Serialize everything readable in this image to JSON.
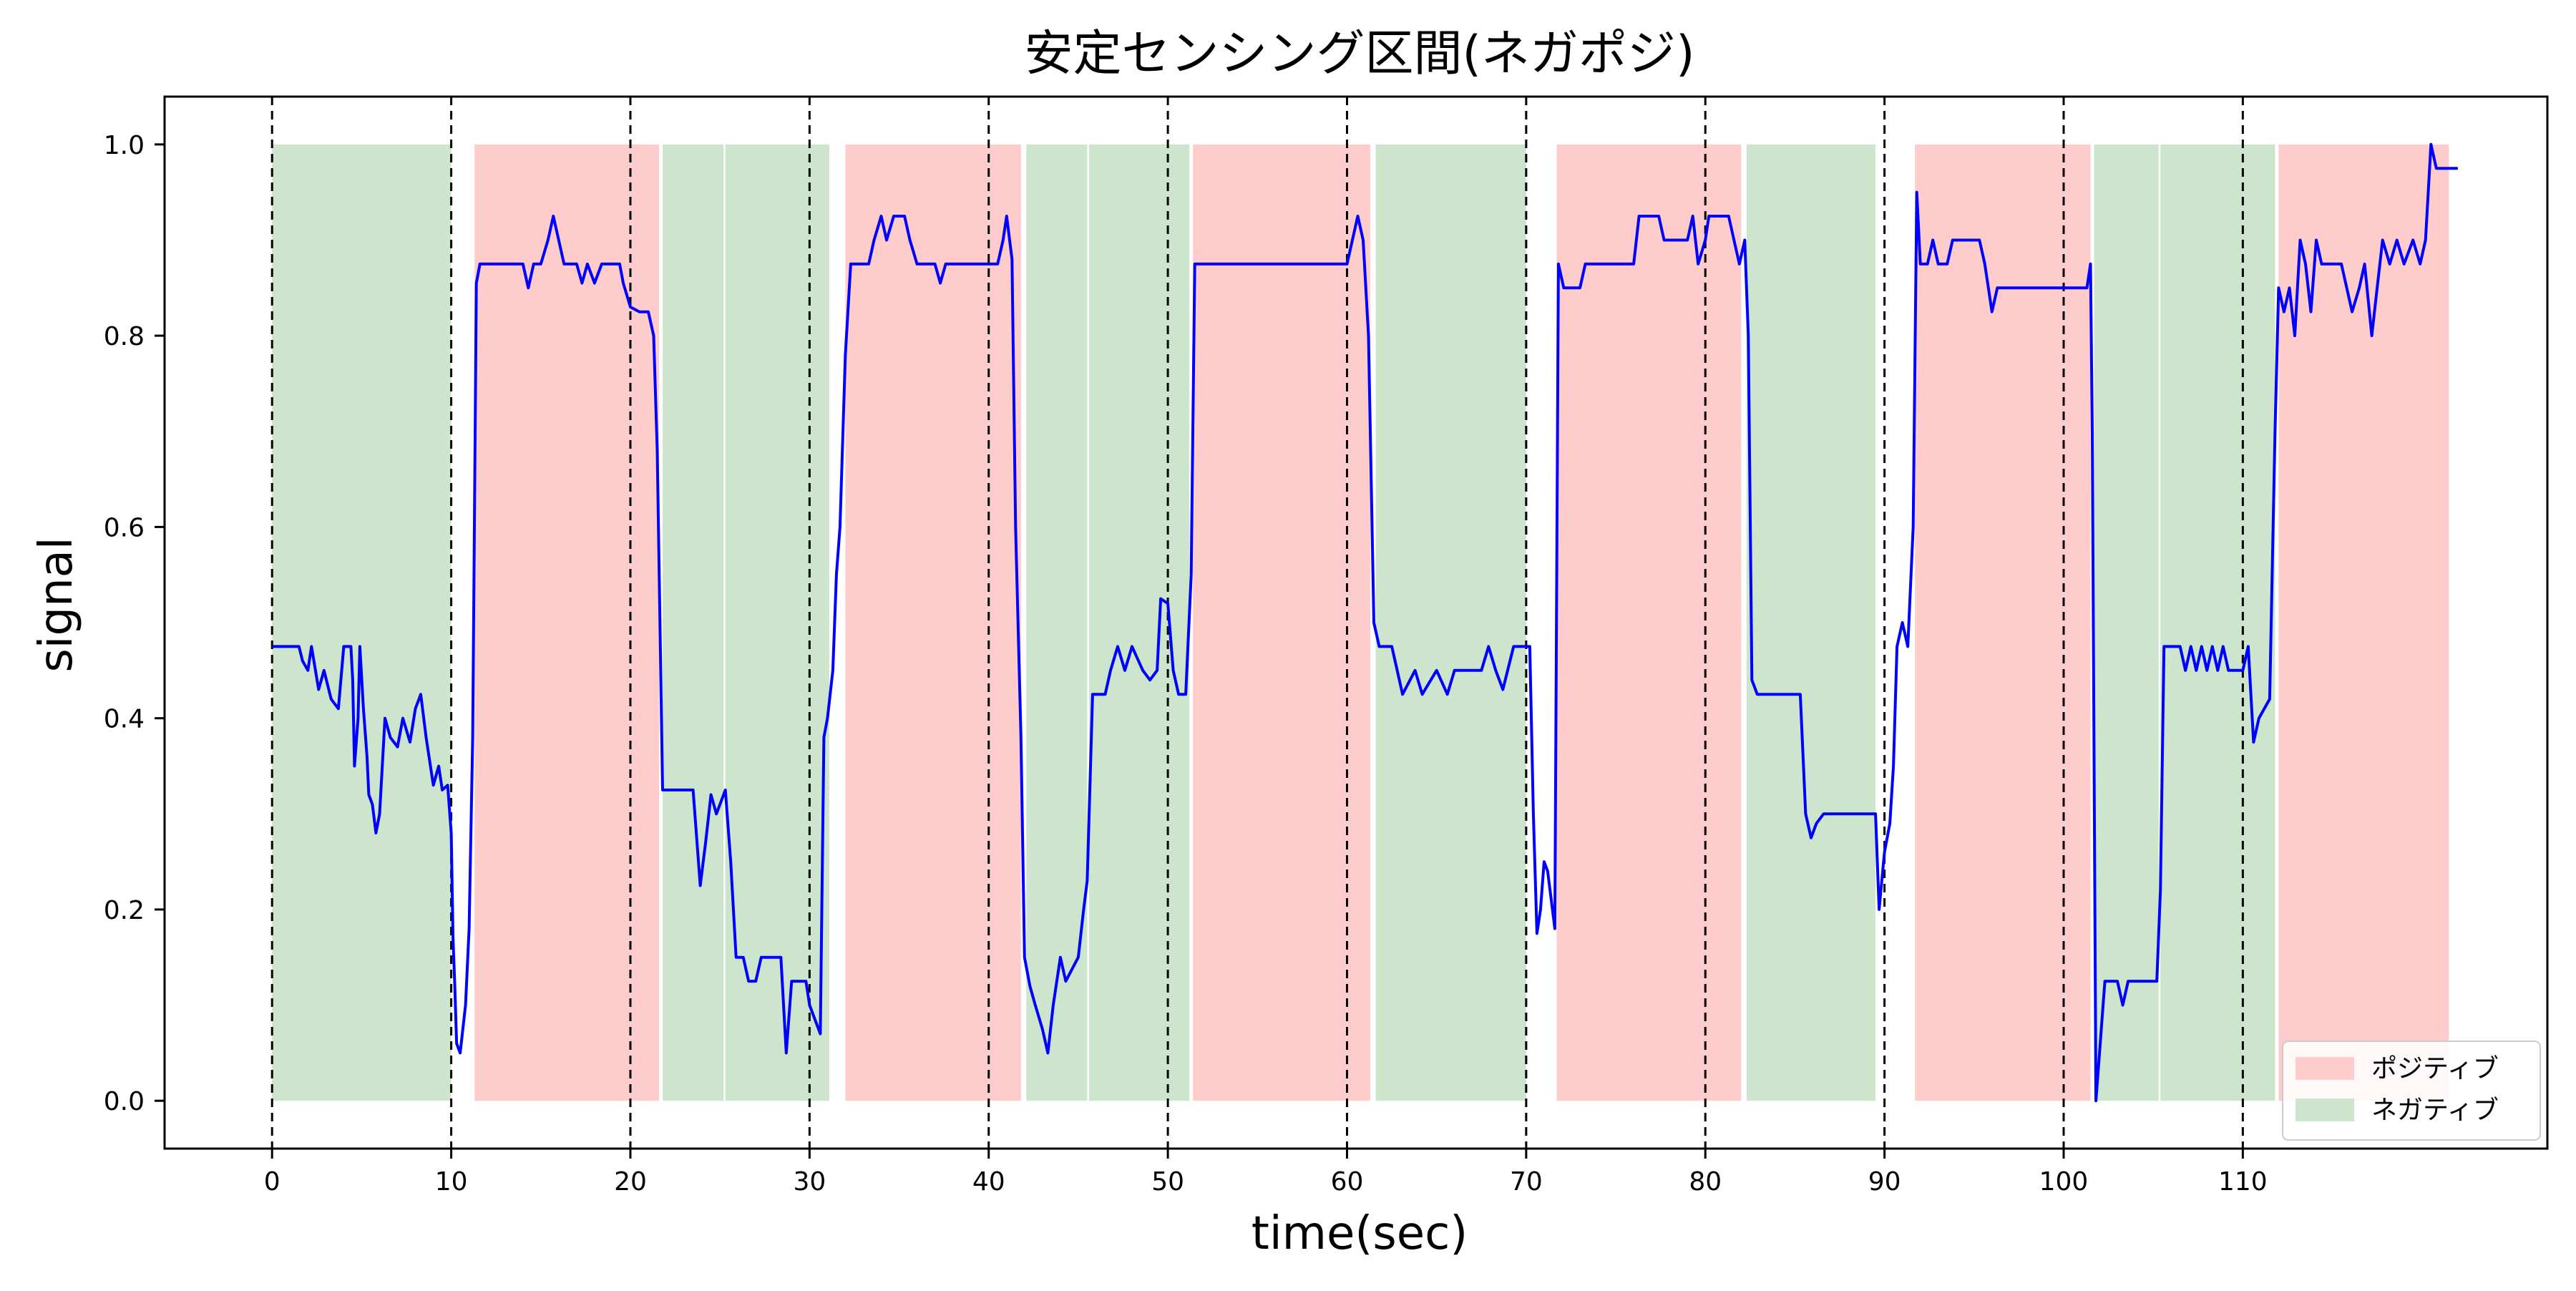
{
  "chart_data": {
    "type": "line",
    "title": "安定センシング区間(ネガポジ)",
    "xlabel": "time(sec)",
    "ylabel": "signal",
    "xlim": [
      -6,
      127
    ],
    "ylim": [
      -0.05,
      1.05
    ],
    "xticks": [
      0,
      10,
      20,
      30,
      40,
      50,
      60,
      70,
      80,
      90,
      100,
      110
    ],
    "yticks": [
      0.0,
      0.2,
      0.4,
      0.6,
      0.8,
      1.0
    ],
    "xtick_labels": [
      "0",
      "10",
      "20",
      "30",
      "40",
      "50",
      "60",
      "70",
      "80",
      "90",
      "100",
      "110"
    ],
    "ytick_labels": [
      "0.0",
      "0.2",
      "0.4",
      "0.6",
      "0.8",
      "1.0"
    ],
    "grid": false,
    "vlines": [
      0,
      10,
      20,
      30,
      40,
      50,
      60,
      70,
      80,
      90,
      100,
      110
    ],
    "legend": {
      "position": "bottom-right",
      "entries": [
        {
          "label": "ポジティブ",
          "color": "#ffcccc"
        },
        {
          "label": "ネガティブ",
          "color": "#cde5cd"
        }
      ]
    },
    "regions": [
      {
        "kind": "negative",
        "x0": 0.0,
        "x1": 10.0
      },
      {
        "kind": "positive",
        "x0": 11.3,
        "x1": 21.6
      },
      {
        "kind": "negative",
        "x0": 21.8,
        "x1": 25.2
      },
      {
        "kind": "negative",
        "x0": 25.3,
        "x1": 31.1
      },
      {
        "kind": "positive",
        "x0": 32.0,
        "x1": 41.8
      },
      {
        "kind": "negative",
        "x0": 42.1,
        "x1": 45.5
      },
      {
        "kind": "negative",
        "x0": 45.6,
        "x1": 51.2
      },
      {
        "kind": "positive",
        "x0": 51.4,
        "x1": 61.3
      },
      {
        "kind": "negative",
        "x0": 61.6,
        "x1": 70.0
      },
      {
        "kind": "positive",
        "x0": 71.7,
        "x1": 82.0
      },
      {
        "kind": "negative",
        "x0": 82.3,
        "x1": 89.5
      },
      {
        "kind": "positive",
        "x0": 91.7,
        "x1": 101.5
      },
      {
        "kind": "negative",
        "x0": 101.7,
        "x1": 105.3
      },
      {
        "kind": "negative",
        "x0": 105.4,
        "x1": 111.8
      },
      {
        "kind": "positive",
        "x0": 112.0,
        "x1": 121.5
      }
    ],
    "series": [
      {
        "color": "#0000ff",
        "points": [
          [
            0,
            0.475
          ],
          [
            1.5,
            0.475
          ],
          [
            1.7,
            0.46
          ],
          [
            2.0,
            0.45
          ],
          [
            2.2,
            0.475
          ],
          [
            2.6,
            0.43
          ],
          [
            2.9,
            0.45
          ],
          [
            3.3,
            0.42
          ],
          [
            3.7,
            0.41
          ],
          [
            4.0,
            0.475
          ],
          [
            4.4,
            0.475
          ],
          [
            4.5,
            0.44
          ],
          [
            4.6,
            0.35
          ],
          [
            4.8,
            0.4
          ],
          [
            4.9,
            0.475
          ],
          [
            5.1,
            0.41
          ],
          [
            5.3,
            0.36
          ],
          [
            5.4,
            0.32
          ],
          [
            5.6,
            0.31
          ],
          [
            5.8,
            0.28
          ],
          [
            6.0,
            0.3
          ],
          [
            6.3,
            0.4
          ],
          [
            6.6,
            0.38
          ],
          [
            7.0,
            0.37
          ],
          [
            7.3,
            0.4
          ],
          [
            7.7,
            0.375
          ],
          [
            8.0,
            0.41
          ],
          [
            8.3,
            0.425
          ],
          [
            8.6,
            0.38
          ],
          [
            9.0,
            0.33
          ],
          [
            9.3,
            0.35
          ],
          [
            9.5,
            0.325
          ],
          [
            9.8,
            0.33
          ],
          [
            10.0,
            0.28
          ],
          [
            10.1,
            0.17
          ],
          [
            10.2,
            0.12
          ],
          [
            10.3,
            0.06
          ],
          [
            10.5,
            0.05
          ],
          [
            10.8,
            0.1
          ],
          [
            11.0,
            0.18
          ],
          [
            11.2,
            0.38
          ],
          [
            11.4,
            0.855
          ],
          [
            11.6,
            0.875
          ],
          [
            14.0,
            0.875
          ],
          [
            14.3,
            0.85
          ],
          [
            14.6,
            0.875
          ],
          [
            15.0,
            0.875
          ],
          [
            15.4,
            0.9
          ],
          [
            15.7,
            0.925
          ],
          [
            16.0,
            0.9
          ],
          [
            16.3,
            0.875
          ],
          [
            17.0,
            0.875
          ],
          [
            17.3,
            0.855
          ],
          [
            17.6,
            0.875
          ],
          [
            18.0,
            0.855
          ],
          [
            18.4,
            0.875
          ],
          [
            19.4,
            0.875
          ],
          [
            19.6,
            0.855
          ],
          [
            20.0,
            0.83
          ],
          [
            20.5,
            0.825
          ],
          [
            21.0,
            0.825
          ],
          [
            21.3,
            0.8
          ],
          [
            21.5,
            0.68
          ],
          [
            21.8,
            0.325
          ],
          [
            23.5,
            0.325
          ],
          [
            23.9,
            0.225
          ],
          [
            24.2,
            0.27
          ],
          [
            24.5,
            0.32
          ],
          [
            24.8,
            0.3
          ],
          [
            25.3,
            0.325
          ],
          [
            25.6,
            0.25
          ],
          [
            25.9,
            0.15
          ],
          [
            26.3,
            0.15
          ],
          [
            26.6,
            0.125
          ],
          [
            27.0,
            0.125
          ],
          [
            27.3,
            0.15
          ],
          [
            28.4,
            0.15
          ],
          [
            28.7,
            0.05
          ],
          [
            29.0,
            0.125
          ],
          [
            29.8,
            0.125
          ],
          [
            30.0,
            0.1
          ],
          [
            30.4,
            0.08
          ],
          [
            30.6,
            0.07
          ],
          [
            30.8,
            0.38
          ],
          [
            31.0,
            0.4
          ],
          [
            31.3,
            0.45
          ],
          [
            31.5,
            0.55
          ],
          [
            31.7,
            0.6
          ],
          [
            32.0,
            0.78
          ],
          [
            32.3,
            0.875
          ],
          [
            33.3,
            0.875
          ],
          [
            33.6,
            0.9
          ],
          [
            34.0,
            0.925
          ],
          [
            34.3,
            0.9
          ],
          [
            34.7,
            0.925
          ],
          [
            35.3,
            0.925
          ],
          [
            35.6,
            0.9
          ],
          [
            36.0,
            0.875
          ],
          [
            37.0,
            0.875
          ],
          [
            37.3,
            0.855
          ],
          [
            37.6,
            0.875
          ],
          [
            40.5,
            0.875
          ],
          [
            40.8,
            0.9
          ],
          [
            41.0,
            0.925
          ],
          [
            41.3,
            0.88
          ],
          [
            41.5,
            0.6
          ],
          [
            41.8,
            0.38
          ],
          [
            42.0,
            0.15
          ],
          [
            42.3,
            0.12
          ],
          [
            42.6,
            0.1
          ],
          [
            43.0,
            0.075
          ],
          [
            43.3,
            0.05
          ],
          [
            43.6,
            0.1
          ],
          [
            44.0,
            0.15
          ],
          [
            44.3,
            0.125
          ],
          [
            45.0,
            0.15
          ],
          [
            45.3,
            0.2
          ],
          [
            45.5,
            0.23
          ],
          [
            45.8,
            0.425
          ],
          [
            46.5,
            0.425
          ],
          [
            46.8,
            0.45
          ],
          [
            47.2,
            0.475
          ],
          [
            47.6,
            0.45
          ],
          [
            48.0,
            0.475
          ],
          [
            48.6,
            0.45
          ],
          [
            49.0,
            0.44
          ],
          [
            49.4,
            0.45
          ],
          [
            49.6,
            0.525
          ],
          [
            50.0,
            0.52
          ],
          [
            50.3,
            0.45
          ],
          [
            50.6,
            0.425
          ],
          [
            51.0,
            0.425
          ],
          [
            51.3,
            0.55
          ],
          [
            51.5,
            0.875
          ],
          [
            60.0,
            0.875
          ],
          [
            60.3,
            0.9
          ],
          [
            60.6,
            0.925
          ],
          [
            60.9,
            0.9
          ],
          [
            61.2,
            0.8
          ],
          [
            61.5,
            0.5
          ],
          [
            61.8,
            0.475
          ],
          [
            62.5,
            0.475
          ],
          [
            62.8,
            0.45
          ],
          [
            63.1,
            0.425
          ],
          [
            63.8,
            0.45
          ],
          [
            64.2,
            0.425
          ],
          [
            65.0,
            0.45
          ],
          [
            65.6,
            0.425
          ],
          [
            66.0,
            0.45
          ],
          [
            67.5,
            0.45
          ],
          [
            67.9,
            0.475
          ],
          [
            68.3,
            0.45
          ],
          [
            68.7,
            0.43
          ],
          [
            69.3,
            0.475
          ],
          [
            70.2,
            0.475
          ],
          [
            70.4,
            0.3
          ],
          [
            70.6,
            0.175
          ],
          [
            70.8,
            0.2
          ],
          [
            71.0,
            0.25
          ],
          [
            71.2,
            0.24
          ],
          [
            71.4,
            0.21
          ],
          [
            71.6,
            0.18
          ],
          [
            71.8,
            0.875
          ],
          [
            72.1,
            0.85
          ],
          [
            73.0,
            0.85
          ],
          [
            73.3,
            0.875
          ],
          [
            76.0,
            0.875
          ],
          [
            76.3,
            0.925
          ],
          [
            77.4,
            0.925
          ],
          [
            77.7,
            0.9
          ],
          [
            79.0,
            0.9
          ],
          [
            79.3,
            0.925
          ],
          [
            79.6,
            0.875
          ],
          [
            80.0,
            0.9
          ],
          [
            80.2,
            0.925
          ],
          [
            81.3,
            0.925
          ],
          [
            81.6,
            0.9
          ],
          [
            81.9,
            0.875
          ],
          [
            82.2,
            0.9
          ],
          [
            82.4,
            0.8
          ],
          [
            82.6,
            0.44
          ],
          [
            82.9,
            0.425
          ],
          [
            85.3,
            0.425
          ],
          [
            85.6,
            0.3
          ],
          [
            85.9,
            0.275
          ],
          [
            86.2,
            0.29
          ],
          [
            86.6,
            0.3
          ],
          [
            89.5,
            0.3
          ],
          [
            89.7,
            0.2
          ],
          [
            90.0,
            0.26
          ],
          [
            90.3,
            0.29
          ],
          [
            90.5,
            0.35
          ],
          [
            90.7,
            0.475
          ],
          [
            91.0,
            0.5
          ],
          [
            91.3,
            0.475
          ],
          [
            91.6,
            0.6
          ],
          [
            91.8,
            0.95
          ],
          [
            92.0,
            0.875
          ],
          [
            92.4,
            0.875
          ],
          [
            92.7,
            0.9
          ],
          [
            93.0,
            0.875
          ],
          [
            93.5,
            0.875
          ],
          [
            93.8,
            0.9
          ],
          [
            95.3,
            0.9
          ],
          [
            95.6,
            0.875
          ],
          [
            96.0,
            0.825
          ],
          [
            96.3,
            0.85
          ],
          [
            101.3,
            0.85
          ],
          [
            101.5,
            0.875
          ],
          [
            101.6,
            0.7
          ],
          [
            101.8,
            0.0
          ],
          [
            102.0,
            0.05
          ],
          [
            102.3,
            0.125
          ],
          [
            103.0,
            0.125
          ],
          [
            103.3,
            0.1
          ],
          [
            103.6,
            0.125
          ],
          [
            105.2,
            0.125
          ],
          [
            105.4,
            0.22
          ],
          [
            105.6,
            0.475
          ],
          [
            106.5,
            0.475
          ],
          [
            106.8,
            0.45
          ],
          [
            107.1,
            0.475
          ],
          [
            107.4,
            0.45
          ],
          [
            107.7,
            0.475
          ],
          [
            108.0,
            0.45
          ],
          [
            108.3,
            0.475
          ],
          [
            108.6,
            0.45
          ],
          [
            108.9,
            0.475
          ],
          [
            109.2,
            0.45
          ],
          [
            110.0,
            0.45
          ],
          [
            110.3,
            0.475
          ],
          [
            110.6,
            0.375
          ],
          [
            110.9,
            0.4
          ],
          [
            111.5,
            0.42
          ],
          [
            111.8,
            0.7
          ],
          [
            112.0,
            0.85
          ],
          [
            112.3,
            0.825
          ],
          [
            112.6,
            0.85
          ],
          [
            112.9,
            0.8
          ],
          [
            113.2,
            0.9
          ],
          [
            113.5,
            0.875
          ],
          [
            113.8,
            0.825
          ],
          [
            114.1,
            0.9
          ],
          [
            114.4,
            0.875
          ],
          [
            115.5,
            0.875
          ],
          [
            115.8,
            0.85
          ],
          [
            116.1,
            0.825
          ],
          [
            116.5,
            0.85
          ],
          [
            116.8,
            0.875
          ],
          [
            117.2,
            0.8
          ],
          [
            117.5,
            0.85
          ],
          [
            117.8,
            0.9
          ],
          [
            118.2,
            0.875
          ],
          [
            118.6,
            0.9
          ],
          [
            119.0,
            0.875
          ],
          [
            119.5,
            0.9
          ],
          [
            119.9,
            0.875
          ],
          [
            120.2,
            0.9
          ],
          [
            120.5,
            1.0
          ],
          [
            120.8,
            0.975
          ],
          [
            122.0,
            0.975
          ]
        ]
      }
    ]
  }
}
